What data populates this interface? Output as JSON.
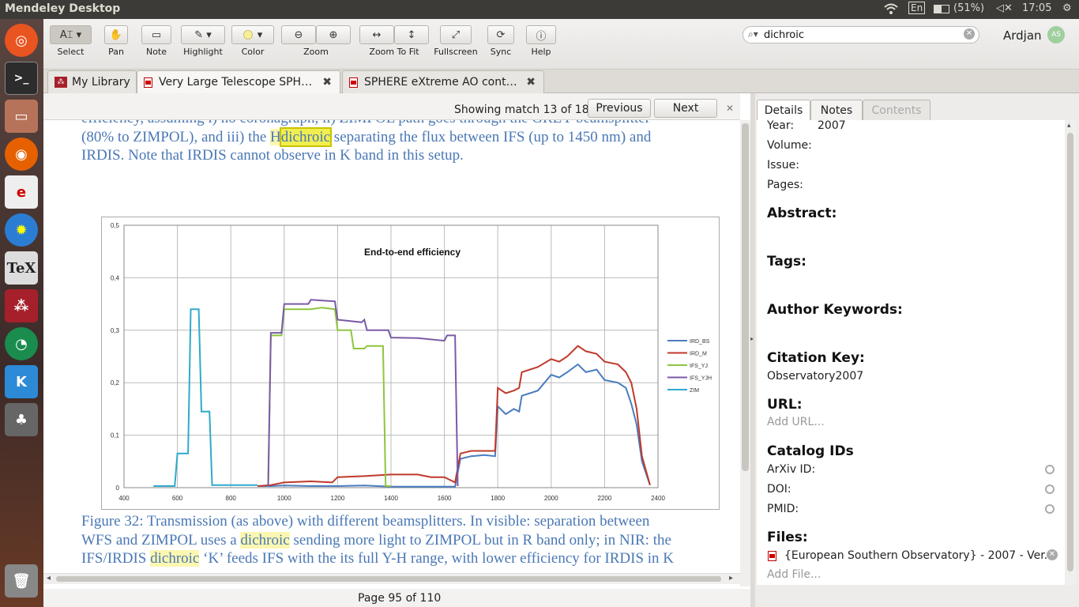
{
  "topbar": {
    "title": "Mendeley Desktop",
    "lang": "En",
    "battery": "(51%)",
    "time": "17:05"
  },
  "toolbar": {
    "buttons": [
      {
        "id": "select",
        "label": "Select"
      },
      {
        "id": "pan",
        "label": "Pan"
      },
      {
        "id": "note",
        "label": "Note"
      },
      {
        "id": "highlight",
        "label": "Highlight"
      },
      {
        "id": "color",
        "label": "Color"
      },
      {
        "id": "zoom",
        "label": "Zoom"
      },
      {
        "id": "zoom-to-fit",
        "label": "Zoom To Fit"
      },
      {
        "id": "fullscreen",
        "label": "Fullscreen"
      },
      {
        "id": "sync",
        "label": "Sync"
      },
      {
        "id": "help",
        "label": "Help"
      }
    ],
    "search_value": "dichroic",
    "user_name": "Ardjan",
    "user_initials": "AS",
    "color_value": "#f8ef9a"
  },
  "tabs": [
    {
      "label": "My Library"
    },
    {
      "label": "Very Large Telescope SPH…"
    },
    {
      "label": "SPHERE eXtreme AO cont…"
    }
  ],
  "findbar": {
    "status": "Showing match 13 of 18",
    "previous": "Previous",
    "next": "Next"
  },
  "document": {
    "caption_top": {
      "line1": "efficiency, assuming i) no coronagraph, ii) ZIMPOL path goes through the GREY beamsplitter",
      "line2": "(80% to ZIMPOL), and iii) the ",
      "h": "H",
      "dichroic": "dichroic",
      "line2b": " separating the flux between IFS (up to 1450 nm) and",
      "line3": "IRDIS. Note that IRDIS cannot observe in K band in this setup."
    },
    "caption_bottom": {
      "l1": "Figure 32: Transmission (as above) with different beamsplitters. In visible: separation between",
      "l2a": "WFS and ZIMPOL uses a ",
      "l2hl": "dichroic",
      "l2b": " sending more light to ZIMPOL but in R band only; in NIR: the",
      "l3a": "IFS/IRDIS ",
      "l3hl": "dichroic",
      "l3b": " ‘K’ feeds IFS with the its full Y-H range, with lower efficiency for IRDIS in K"
    }
  },
  "page_indicator": "Page 95 of 110",
  "chart_data": {
    "type": "line",
    "title": "End-to-end efficiency",
    "xlim": [
      400,
      2400
    ],
    "ylim": [
      0,
      0.5
    ],
    "x_ticks": [
      "400",
      "600",
      "800",
      "1000",
      "1200",
      "1400",
      "1600",
      "1800",
      "2000",
      "2200",
      "2400"
    ],
    "y_ticks": [
      "0",
      "0,1",
      "0,2",
      "0,3",
      "0,4",
      "0,5"
    ],
    "legend_position": "right",
    "series": [
      {
        "name": "IRD_BS",
        "color": "#4a7cc0",
        "points": [
          [
            900,
            0.003
          ],
          [
            950,
            0.003
          ],
          [
            1000,
            0.004
          ],
          [
            1100,
            0.003
          ],
          [
            1200,
            0.003
          ],
          [
            1300,
            0.004
          ],
          [
            1400,
            0.002
          ],
          [
            1500,
            0.002
          ],
          [
            1600,
            0.002
          ],
          [
            1640,
            0.002
          ],
          [
            1660,
            0.055
          ],
          [
            1700,
            0.06
          ],
          [
            1750,
            0.062
          ],
          [
            1790,
            0.06
          ],
          [
            1800,
            0.155
          ],
          [
            1830,
            0.14
          ],
          [
            1860,
            0.15
          ],
          [
            1880,
            0.145
          ],
          [
            1890,
            0.175
          ],
          [
            1950,
            0.185
          ],
          [
            2000,
            0.215
          ],
          [
            2030,
            0.21
          ],
          [
            2060,
            0.22
          ],
          [
            2100,
            0.235
          ],
          [
            2130,
            0.22
          ],
          [
            2170,
            0.225
          ],
          [
            2200,
            0.205
          ],
          [
            2250,
            0.2
          ],
          [
            2280,
            0.19
          ],
          [
            2300,
            0.16
          ],
          [
            2320,
            0.12
          ],
          [
            2340,
            0.05
          ],
          [
            2370,
            0.005
          ]
        ]
      },
      {
        "name": "IRD_M",
        "color": "#c0392b",
        "points": [
          [
            900,
            0.003
          ],
          [
            950,
            0.005
          ],
          [
            1000,
            0.01
          ],
          [
            1100,
            0.012
          ],
          [
            1180,
            0.01
          ],
          [
            1200,
            0.02
          ],
          [
            1300,
            0.022
          ],
          [
            1400,
            0.025
          ],
          [
            1500,
            0.025
          ],
          [
            1550,
            0.02
          ],
          [
            1600,
            0.02
          ],
          [
            1640,
            0.01
          ],
          [
            1660,
            0.065
          ],
          [
            1700,
            0.07
          ],
          [
            1790,
            0.07
          ],
          [
            1800,
            0.19
          ],
          [
            1830,
            0.18
          ],
          [
            1860,
            0.185
          ],
          [
            1880,
            0.19
          ],
          [
            1890,
            0.22
          ],
          [
            1950,
            0.23
          ],
          [
            2000,
            0.245
          ],
          [
            2030,
            0.24
          ],
          [
            2060,
            0.25
          ],
          [
            2100,
            0.27
          ],
          [
            2130,
            0.26
          ],
          [
            2170,
            0.255
          ],
          [
            2200,
            0.24
          ],
          [
            2250,
            0.235
          ],
          [
            2280,
            0.22
          ],
          [
            2300,
            0.2
          ],
          [
            2320,
            0.15
          ],
          [
            2340,
            0.06
          ],
          [
            2370,
            0.005
          ]
        ]
      },
      {
        "name": "IFS_YJ",
        "color": "#8dc63f",
        "points": [
          [
            940,
            0.003
          ],
          [
            950,
            0.29
          ],
          [
            990,
            0.29
          ],
          [
            1000,
            0.34
          ],
          [
            1100,
            0.34
          ],
          [
            1140,
            0.343
          ],
          [
            1190,
            0.34
          ],
          [
            1200,
            0.3
          ],
          [
            1250,
            0.3
          ],
          [
            1260,
            0.265
          ],
          [
            1300,
            0.265
          ],
          [
            1310,
            0.27
          ],
          [
            1370,
            0.27
          ],
          [
            1380,
            0.003
          ],
          [
            1400,
            0.003
          ]
        ]
      },
      {
        "name": "IFS_YJH",
        "color": "#7a5aa6",
        "points": [
          [
            940,
            0.003
          ],
          [
            950,
            0.295
          ],
          [
            990,
            0.295
          ],
          [
            1000,
            0.35
          ],
          [
            1090,
            0.35
          ],
          [
            1100,
            0.358
          ],
          [
            1190,
            0.355
          ],
          [
            1200,
            0.32
          ],
          [
            1290,
            0.315
          ],
          [
            1300,
            0.32
          ],
          [
            1310,
            0.3
          ],
          [
            1390,
            0.3
          ],
          [
            1400,
            0.286
          ],
          [
            1500,
            0.285
          ],
          [
            1600,
            0.28
          ],
          [
            1610,
            0.29
          ],
          [
            1640,
            0.29
          ],
          [
            1650,
            0.003
          ]
        ]
      },
      {
        "name": "ZIM",
        "color": "#2eaacc",
        "points": [
          [
            510,
            0.003
          ],
          [
            590,
            0.003
          ],
          [
            600,
            0.065
          ],
          [
            640,
            0.065
          ],
          [
            650,
            0.34
          ],
          [
            680,
            0.34
          ],
          [
            690,
            0.145
          ],
          [
            720,
            0.145
          ],
          [
            730,
            0.005
          ],
          [
            900,
            0.005
          ]
        ]
      }
    ]
  },
  "details": {
    "tabs": [
      "Details",
      "Notes",
      "Contents"
    ],
    "year_label": "Year:",
    "year_value": "2007",
    "volume_label": "Volume:",
    "issue_label": "Issue:",
    "pages_label": "Pages:",
    "abstract": "Abstract:",
    "tags": "Tags:",
    "author_keywords": "Author Keywords:",
    "citation_key": "Citation Key:",
    "citation_key_value": "Observatory2007",
    "url": "URL:",
    "url_placeholder": "Add URL...",
    "catalog_ids": "Catalog IDs",
    "arxiv": "ArXiv ID:",
    "doi": "DOI:",
    "pmid": "PMID:",
    "files": "Files:",
    "file_name": "{European Southern Observatory} - 2007 - Ver...",
    "add_file": "Add File..."
  }
}
